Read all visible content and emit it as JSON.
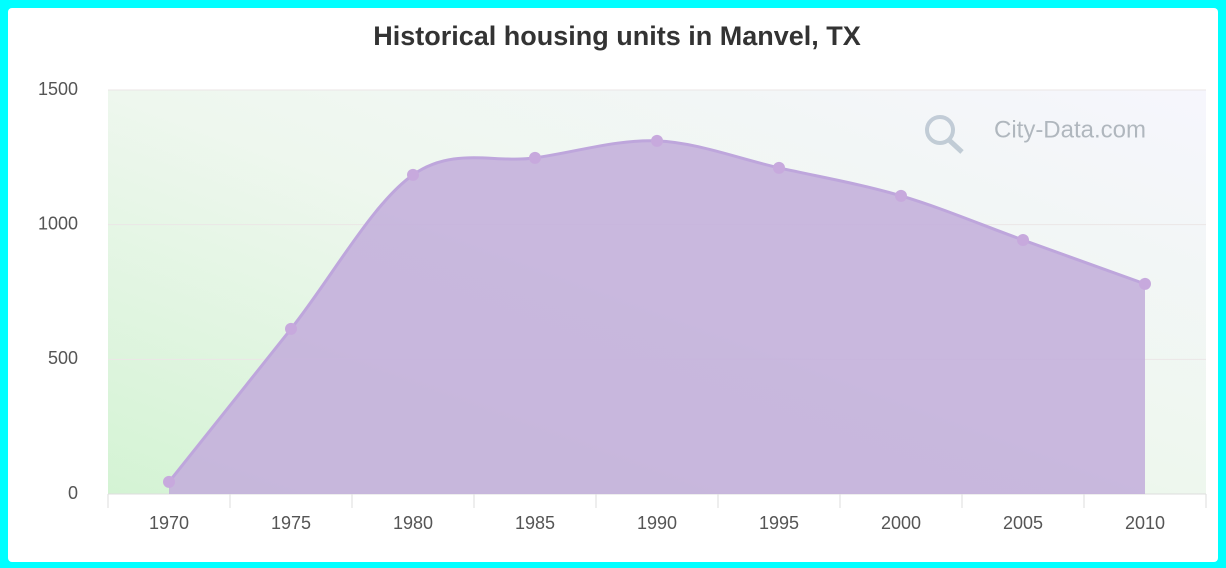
{
  "chart_data": {
    "type": "area",
    "title": "Historical housing units in Manvel, TX",
    "watermark": "City-Data.com",
    "categories": [
      "1970",
      "1975",
      "1980",
      "1985",
      "1990",
      "1995",
      "2000",
      "2005",
      "2010"
    ],
    "values": [
      45,
      613,
      1185,
      1248,
      1311,
      1211,
      1107,
      943,
      780
    ],
    "color": "#c4b0dc",
    "ylim": [
      0,
      1500
    ],
    "yticks": [
      0,
      500,
      1000,
      1500
    ],
    "grid": true
  }
}
